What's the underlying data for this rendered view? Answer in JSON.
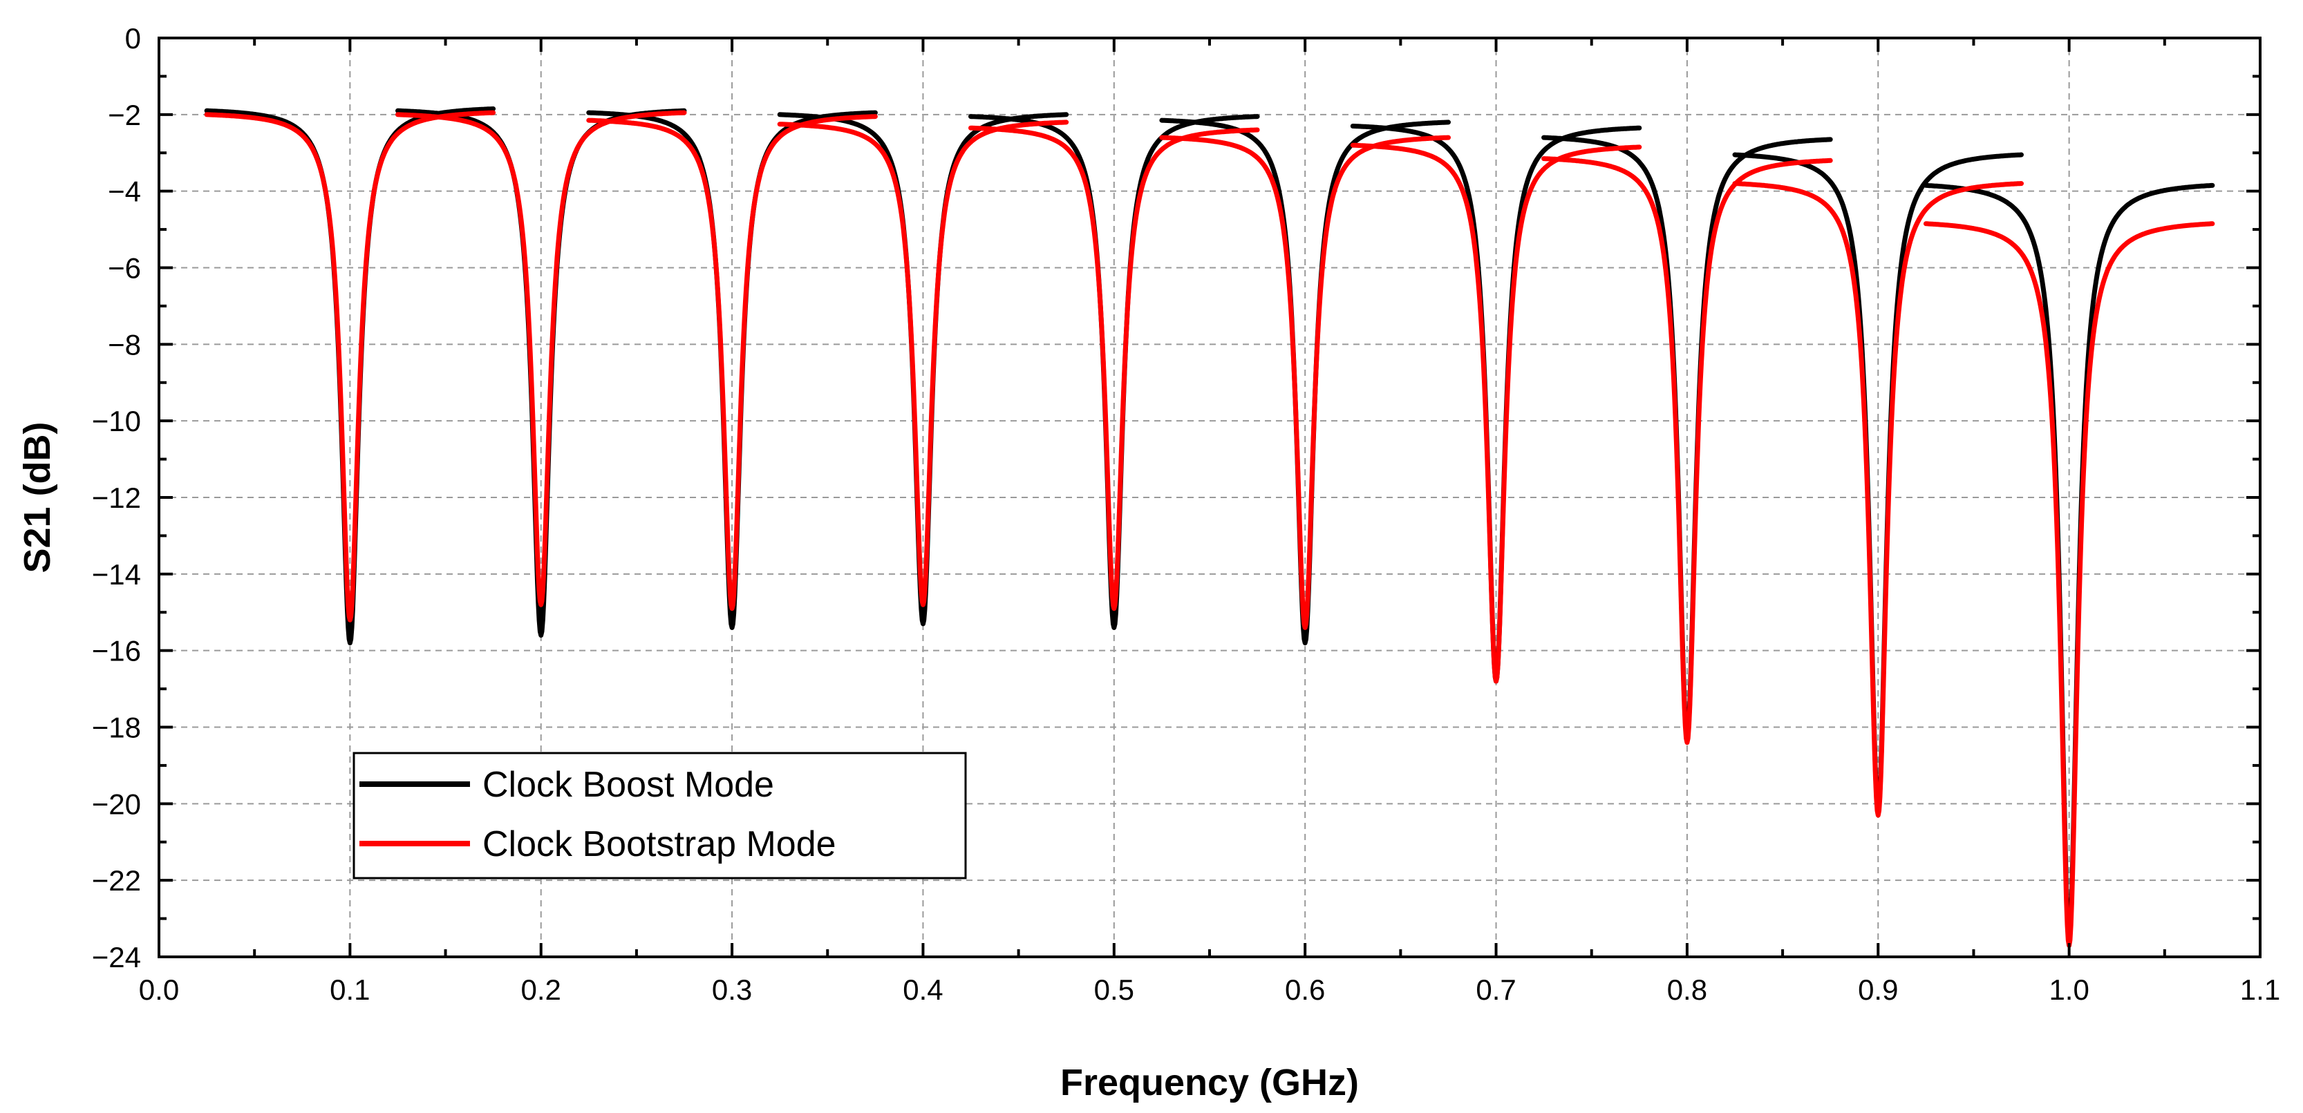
{
  "chart_data": {
    "type": "line",
    "title": "",
    "xlabel": "Frequency (GHz)",
    "ylabel": "S21 (dB)",
    "xlim": [
      0.0,
      1.1
    ],
    "ylim": [
      -24,
      0
    ],
    "xticks": [
      0.0,
      0.1,
      0.2,
      0.3,
      0.4,
      0.5,
      0.6,
      0.7,
      0.8,
      0.9,
      1.0,
      1.1
    ],
    "xtick_labels": [
      "0.0",
      "0.1",
      "0.2",
      "0.3",
      "0.4",
      "0.5",
      "0.6",
      "0.7",
      "0.8",
      "0.9",
      "1.0",
      "1.1"
    ],
    "yticks": [
      0,
      -2,
      -4,
      -6,
      -8,
      -10,
      -12,
      -14,
      -16,
      -18,
      -20,
      -22,
      -24
    ],
    "ytick_labels": [
      "0",
      "−2",
      "−4",
      "−6",
      "−8",
      "−10",
      "−12",
      "−14",
      "−16",
      "−18",
      "−20",
      "−22",
      "−24"
    ],
    "grid": true,
    "legend_position": "lower-left",
    "series": [
      {
        "name": "Clock Boost Mode",
        "color": "#000000",
        "notches": [
          {
            "center": 0.1,
            "range": [
              0.025,
              0.175
            ],
            "edge_left": -1.9,
            "edge_right": -1.85,
            "min": -15.8
          },
          {
            "center": 0.2,
            "range": [
              0.125,
              0.275
            ],
            "edge_left": -1.9,
            "edge_right": -1.9,
            "min": -15.6
          },
          {
            "center": 0.3,
            "range": [
              0.225,
              0.375
            ],
            "edge_left": -1.95,
            "edge_right": -1.95,
            "min": -15.4
          },
          {
            "center": 0.4,
            "range": [
              0.325,
              0.475
            ],
            "edge_left": -2.0,
            "edge_right": -2.0,
            "min": -15.3
          },
          {
            "center": 0.5,
            "range": [
              0.425,
              0.575
            ],
            "edge_left": -2.05,
            "edge_right": -2.05,
            "min": -15.4
          },
          {
            "center": 0.6,
            "range": [
              0.525,
              0.675
            ],
            "edge_left": -2.15,
            "edge_right": -2.2,
            "min": -15.8
          },
          {
            "center": 0.7,
            "range": [
              0.625,
              0.775
            ],
            "edge_left": -2.3,
            "edge_right": -2.35,
            "min": -16.8
          },
          {
            "center": 0.8,
            "range": [
              0.725,
              0.875
            ],
            "edge_left": -2.6,
            "edge_right": -2.65,
            "min": -18.3
          },
          {
            "center": 0.9,
            "range": [
              0.825,
              0.975
            ],
            "edge_left": -3.05,
            "edge_right": -3.05,
            "min": -20.2
          },
          {
            "center": 1.0,
            "range": [
              0.925,
              1.075
            ],
            "edge_left": -3.85,
            "edge_right": -3.85,
            "min": -23.5
          }
        ]
      },
      {
        "name": "Clock Bootstrap Mode",
        "color": "#ff0000",
        "notches": [
          {
            "center": 0.1,
            "range": [
              0.025,
              0.175
            ],
            "edge_left": -2.0,
            "edge_right": -1.95,
            "min": -15.2
          },
          {
            "center": 0.2,
            "range": [
              0.125,
              0.275
            ],
            "edge_left": -2.0,
            "edge_right": -1.95,
            "min": -14.8
          },
          {
            "center": 0.3,
            "range": [
              0.225,
              0.375
            ],
            "edge_left": -2.15,
            "edge_right": -2.05,
            "min": -14.9
          },
          {
            "center": 0.4,
            "range": [
              0.325,
              0.475
            ],
            "edge_left": -2.25,
            "edge_right": -2.2,
            "min": -14.8
          },
          {
            "center": 0.5,
            "range": [
              0.425,
              0.575
            ],
            "edge_left": -2.35,
            "edge_right": -2.4,
            "min": -14.9
          },
          {
            "center": 0.6,
            "range": [
              0.525,
              0.675
            ],
            "edge_left": -2.6,
            "edge_right": -2.6,
            "min": -15.4
          },
          {
            "center": 0.7,
            "range": [
              0.625,
              0.775
            ],
            "edge_left": -2.8,
            "edge_right": -2.85,
            "min": -16.8
          },
          {
            "center": 0.8,
            "range": [
              0.725,
              0.875
            ],
            "edge_left": -3.15,
            "edge_right": -3.2,
            "min": -18.4
          },
          {
            "center": 0.9,
            "range": [
              0.825,
              0.975
            ],
            "edge_left": -3.8,
            "edge_right": -3.8,
            "min": -20.3
          },
          {
            "center": 1.0,
            "range": [
              0.925,
              1.075
            ],
            "edge_left": -4.85,
            "edge_right": -4.85,
            "min": -23.7
          }
        ]
      }
    ]
  }
}
